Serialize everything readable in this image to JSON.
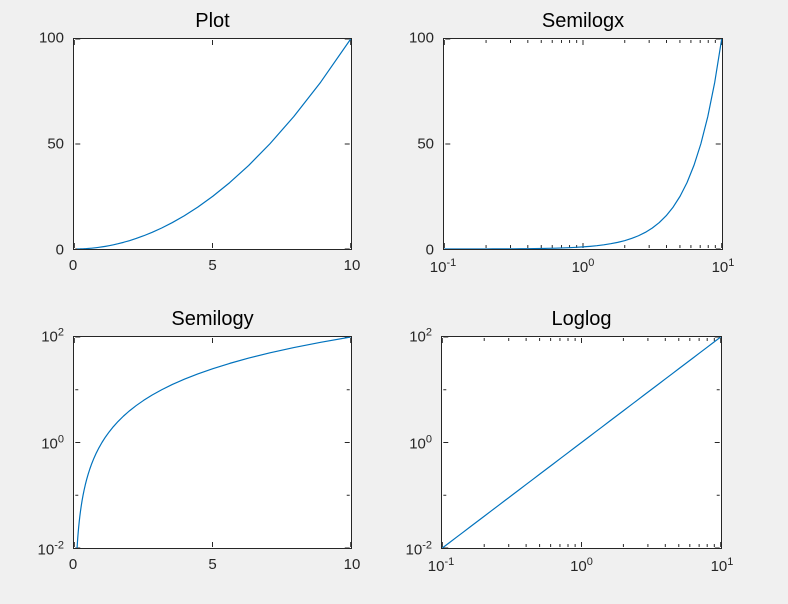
{
  "figure": {
    "background_color": "#f0f0f0",
    "axes_background_color": "#ffffff",
    "axis_color": "#262626",
    "tick_label_color": "#262626",
    "title_color": "#000000",
    "line_color": "#0072bd"
  },
  "chart_data": {
    "type": "line",
    "layout": "2x2-subplots",
    "x": [
      0.1,
      0.1122,
      0.1259,
      0.1413,
      0.1585,
      0.1778,
      0.1995,
      0.2239,
      0.2512,
      0.2818,
      0.3162,
      0.3548,
      0.3981,
      0.4467,
      0.5012,
      0.5623,
      0.631,
      0.7079,
      0.7943,
      0.8913,
      1,
      1.122,
      1.259,
      1.413,
      1.585,
      1.778,
      1.995,
      2.239,
      2.512,
      2.818,
      3.162,
      3.548,
      3.981,
      4.467,
      5.012,
      5.623,
      6.31,
      7.079,
      7.943,
      8.913,
      10
    ],
    "y": [
      0.01,
      0.01259,
      0.01585,
      0.01995,
      0.02512,
      0.03162,
      0.03981,
      0.05012,
      0.0631,
      0.07943,
      0.1,
      0.1259,
      0.1585,
      0.1995,
      0.2512,
      0.3162,
      0.3981,
      0.5012,
      0.631,
      0.7943,
      1,
      1.259,
      1.585,
      1.995,
      2.512,
      3.162,
      3.981,
      5.012,
      6.31,
      7.943,
      10,
      12.59,
      15.85,
      19.95,
      25.12,
      31.62,
      39.81,
      50.12,
      63.1,
      79.43,
      100
    ],
    "subplots": [
      {
        "title": "Plot",
        "xscale": "linear",
        "yscale": "linear",
        "xlim": [
          0,
          10
        ],
        "ylim": [
          0,
          100
        ],
        "xticks": {
          "major": [
            0,
            5,
            10
          ],
          "labels": [
            "0",
            "5",
            "10"
          ],
          "minor": []
        },
        "yticks": {
          "major": [
            0,
            50,
            100
          ],
          "labels": [
            "0",
            "50",
            "100"
          ],
          "minor": []
        }
      },
      {
        "title": "Semilogx",
        "xscale": "log",
        "yscale": "linear",
        "xlim": [
          0.1,
          10
        ],
        "ylim": [
          0,
          100
        ],
        "xticks": {
          "major": [
            0.1,
            1,
            10
          ],
          "labels": [
            "10^-1",
            "10^0",
            "10^1"
          ],
          "minor": [
            0.2,
            0.3,
            0.4,
            0.5,
            0.6,
            0.7,
            0.8,
            0.9,
            2,
            3,
            4,
            5,
            6,
            7,
            8,
            9
          ]
        },
        "yticks": {
          "major": [
            0,
            50,
            100
          ],
          "labels": [
            "0",
            "50",
            "100"
          ],
          "minor": []
        }
      },
      {
        "title": "Semilogy",
        "xscale": "linear",
        "yscale": "log",
        "xlim": [
          0,
          10
        ],
        "ylim": [
          0.01,
          100
        ],
        "xticks": {
          "major": [
            0,
            5,
            10
          ],
          "labels": [
            "0",
            "5",
            "10"
          ],
          "minor": []
        },
        "yticks": {
          "major": [
            0.01,
            1,
            100
          ],
          "labels": [
            "10^-2",
            "10^0",
            "10^2"
          ],
          "minor": [
            0.1,
            10
          ]
        }
      },
      {
        "title": "Loglog",
        "xscale": "log",
        "yscale": "log",
        "xlim": [
          0.1,
          10
        ],
        "ylim": [
          0.01,
          100
        ],
        "xticks": {
          "major": [
            0.1,
            1,
            10
          ],
          "labels": [
            "10^-1",
            "10^0",
            "10^1"
          ],
          "minor": [
            0.2,
            0.3,
            0.4,
            0.5,
            0.6,
            0.7,
            0.8,
            0.9,
            2,
            3,
            4,
            5,
            6,
            7,
            8,
            9
          ]
        },
        "yticks": {
          "major": [
            0.01,
            1,
            100
          ],
          "labels": [
            "10^-2",
            "10^0",
            "10^2"
          ],
          "minor": [
            0.1,
            10
          ]
        }
      }
    ]
  }
}
